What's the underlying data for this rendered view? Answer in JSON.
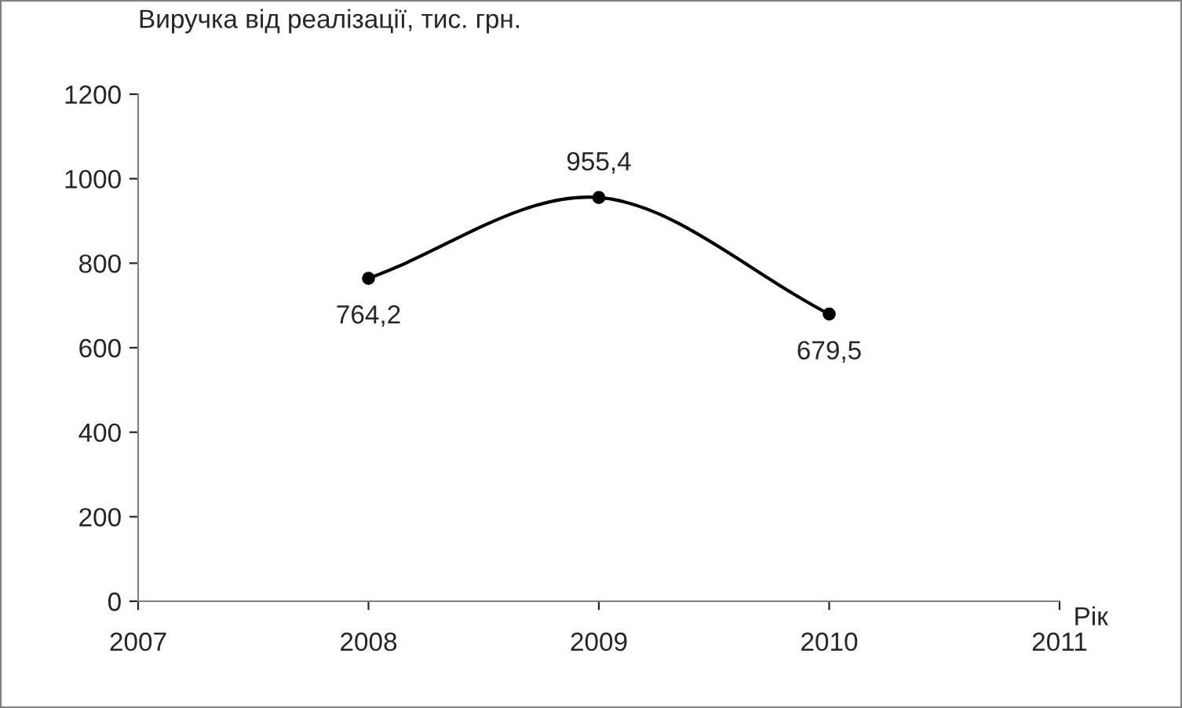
{
  "chart_data": {
    "type": "line",
    "ylabel": "Виручка від реалізації, тис. грн.",
    "xlabel": "Рік",
    "x": [
      2008,
      2009,
      2010
    ],
    "series": [
      {
        "color": "#000000",
        "values": [
          764.2,
          955.4,
          679.5
        ],
        "value_labels": [
          "764,2",
          "955,4",
          "679,5"
        ]
      }
    ],
    "xlim": [
      2007,
      2011
    ],
    "xticks": [
      2007,
      2008,
      2009,
      2010,
      2011
    ],
    "ylim": [
      0,
      1200
    ],
    "yticks": [
      0,
      200,
      400,
      600,
      800,
      1000,
      1200
    ],
    "marker": "circle",
    "line_style": "solid",
    "grid": false,
    "legend": false
  }
}
